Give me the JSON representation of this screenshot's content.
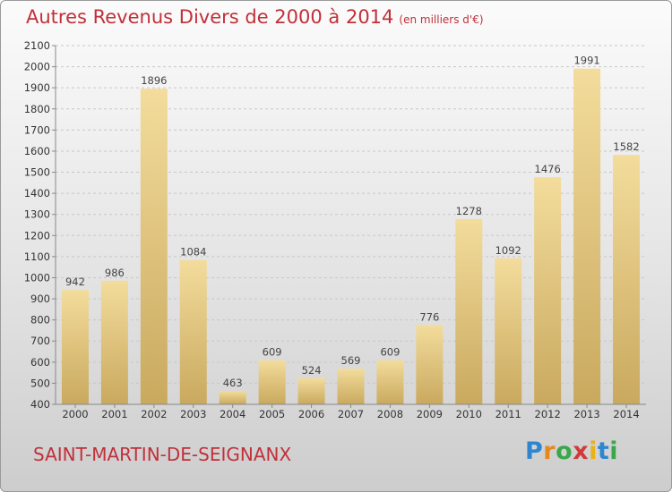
{
  "header": {
    "title": "Autres Revenus Divers de 2000 à 2014",
    "unit": "(en milliers d'€)"
  },
  "footer": {
    "town": "SAINT-MARTIN-DE-SEIGNANX",
    "logo": {
      "letters": [
        "P",
        "r",
        "o",
        "x",
        "i",
        "t",
        "i"
      ],
      "colors": [
        "#2e86d1",
        "#e58a1a",
        "#3aa84a",
        "#d23a3a",
        "#e8b21a",
        "#2e86d1",
        "#3aa84a"
      ]
    }
  },
  "chart_data": {
    "type": "bar",
    "categories": [
      "2000",
      "2001",
      "2002",
      "2003",
      "2004",
      "2005",
      "2006",
      "2007",
      "2008",
      "2009",
      "2010",
      "2011",
      "2012",
      "2013",
      "2014"
    ],
    "values": [
      942,
      986,
      1896,
      1084,
      463,
      609,
      524,
      569,
      609,
      776,
      1278,
      1092,
      1476,
      1991,
      1582
    ],
    "ylim": [
      400,
      2100
    ],
    "yticks": [
      400,
      500,
      600,
      700,
      800,
      900,
      1000,
      1100,
      1200,
      1300,
      1400,
      1500,
      1600,
      1700,
      1800,
      1900,
      2000,
      2100
    ],
    "grid": true,
    "colors": {
      "bar_light": "#f3dc9c",
      "bar_dark": "#c9a95e",
      "label": "#444444"
    }
  }
}
